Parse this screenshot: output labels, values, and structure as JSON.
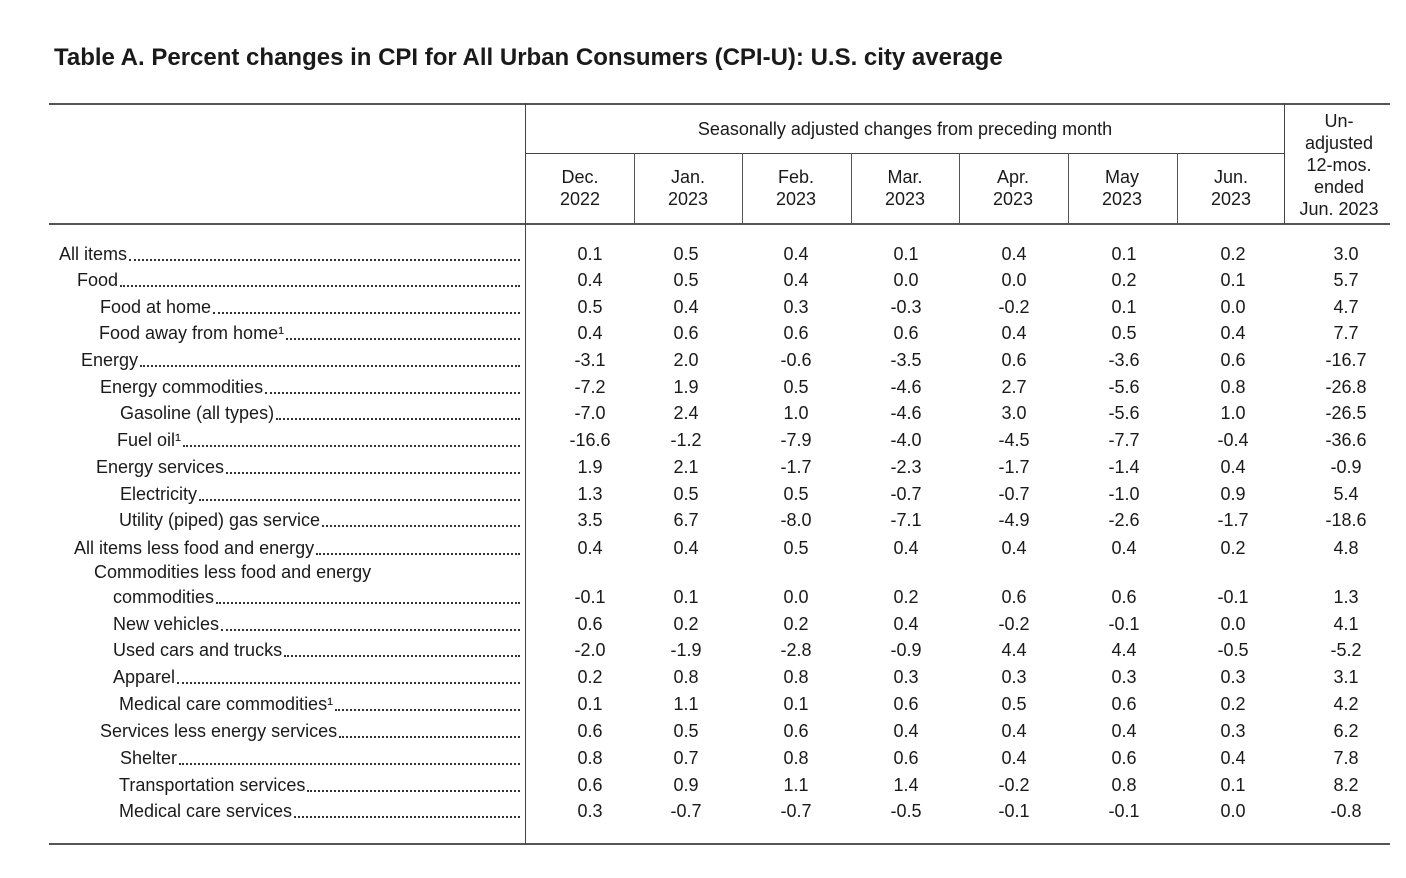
{
  "title": "Table A. Percent changes in CPI for All Urban Consumers (CPI-U): U.S. city average",
  "group_header": "Seasonally adjusted changes from preceding month",
  "columns": [
    {
      "line1": "Dec.",
      "line2": "2022"
    },
    {
      "line1": "Jan.",
      "line2": "2023"
    },
    {
      "line1": "Feb.",
      "line2": "2023"
    },
    {
      "line1": "Mar.",
      "line2": "2023"
    },
    {
      "line1": "Apr.",
      "line2": "2023"
    },
    {
      "line1": "May",
      "line2": "2023"
    },
    {
      "line1": "Jun.",
      "line2": "2023"
    }
  ],
  "unadjusted_header": [
    "Un-",
    "adjusted",
    "12-mos.",
    "ended",
    "Jun. 2023"
  ],
  "rows": [
    {
      "label": "All items",
      "values": [
        "0.1",
        "0.5",
        "0.4",
        "0.1",
        "0.4",
        "0.1",
        "0.2",
        "3.0"
      ]
    },
    {
      "label": "Food",
      "values": [
        "0.4",
        "0.5",
        "0.4",
        "0.0",
        "0.0",
        "0.2",
        "0.1",
        "5.7"
      ]
    },
    {
      "label": "Food at home",
      "values": [
        "0.5",
        "0.4",
        "0.3",
        "-0.3",
        "-0.2",
        "0.1",
        "0.0",
        "4.7"
      ]
    },
    {
      "label": "Food away from home¹",
      "values": [
        "0.4",
        "0.6",
        "0.6",
        "0.6",
        "0.4",
        "0.5",
        "0.4",
        "7.7"
      ]
    },
    {
      "label": "Energy",
      "values": [
        "-3.1",
        "2.0",
        "-0.6",
        "-3.5",
        "0.6",
        "-3.6",
        "0.6",
        "-16.7"
      ]
    },
    {
      "label": "Energy commodities",
      "values": [
        "-7.2",
        "1.9",
        "0.5",
        "-4.6",
        "2.7",
        "-5.6",
        "0.8",
        "-26.8"
      ]
    },
    {
      "label": "Gasoline (all types)",
      "values": [
        "-7.0",
        "2.4",
        "1.0",
        "-4.6",
        "3.0",
        "-5.6",
        "1.0",
        "-26.5"
      ]
    },
    {
      "label": "Fuel oil¹",
      "values": [
        "-16.6",
        "-1.2",
        "-7.9",
        "-4.0",
        "-4.5",
        "-7.7",
        "-0.4",
        "-36.6"
      ]
    },
    {
      "label": "Energy services",
      "values": [
        "1.9",
        "2.1",
        "-1.7",
        "-2.3",
        "-1.7",
        "-1.4",
        "0.4",
        "-0.9"
      ]
    },
    {
      "label": "Electricity",
      "values": [
        "1.3",
        "0.5",
        "0.5",
        "-0.7",
        "-0.7",
        "-1.0",
        "0.9",
        "5.4"
      ]
    },
    {
      "label": "Utility (piped) gas service",
      "values": [
        "3.5",
        "6.7",
        "-8.0",
        "-7.1",
        "-4.9",
        "-2.6",
        "-1.7",
        "-18.6"
      ]
    },
    {
      "label": "All items less food and energy",
      "values": [
        "0.4",
        "0.4",
        "0.5",
        "0.4",
        "0.4",
        "0.4",
        "0.2",
        "4.8"
      ]
    },
    {
      "label_line1": "Commodities less food and energy",
      "label": "commodities",
      "values": [
        "-0.1",
        "0.1",
        "0.0",
        "0.2",
        "0.6",
        "0.6",
        "-0.1",
        "1.3"
      ]
    },
    {
      "label": "New vehicles",
      "values": [
        "0.6",
        "0.2",
        "0.2",
        "0.4",
        "-0.2",
        "-0.1",
        "0.0",
        "4.1"
      ]
    },
    {
      "label": "Used cars and trucks",
      "values": [
        "-2.0",
        "-1.9",
        "-2.8",
        "-0.9",
        "4.4",
        "4.4",
        "-0.5",
        "-5.2"
      ]
    },
    {
      "label": "Apparel",
      "values": [
        "0.2",
        "0.8",
        "0.8",
        "0.3",
        "0.3",
        "0.3",
        "0.3",
        "3.1"
      ]
    },
    {
      "label": "Medical care commodities¹",
      "values": [
        "0.1",
        "1.1",
        "0.1",
        "0.6",
        "0.5",
        "0.6",
        "0.2",
        "4.2"
      ]
    },
    {
      "label": "Services less energy services",
      "values": [
        "0.6",
        "0.5",
        "0.6",
        "0.4",
        "0.4",
        "0.4",
        "0.3",
        "6.2"
      ]
    },
    {
      "label": "Shelter",
      "values": [
        "0.8",
        "0.7",
        "0.8",
        "0.6",
        "0.4",
        "0.6",
        "0.4",
        "7.8"
      ]
    },
    {
      "label": "Transportation services",
      "values": [
        "0.6",
        "0.9",
        "1.1",
        "1.4",
        "-0.2",
        "0.8",
        "0.1",
        "8.2"
      ]
    },
    {
      "label": "Medical care services",
      "values": [
        "0.3",
        "-0.7",
        "-0.7",
        "-0.5",
        "-0.1",
        "-0.1",
        "0.0",
        "-0.8"
      ]
    }
  ]
}
